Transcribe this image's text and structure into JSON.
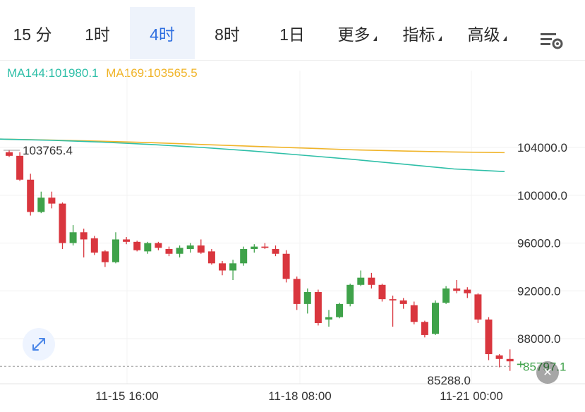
{
  "tabs": [
    {
      "label": "15 分",
      "active": false
    },
    {
      "label": "1时",
      "active": false
    },
    {
      "label": "4时",
      "active": true
    },
    {
      "label": "8时",
      "active": false
    },
    {
      "label": "1日",
      "active": false
    },
    {
      "label": "更多",
      "active": false,
      "dropdown": true
    },
    {
      "label": "指标",
      "active": false,
      "dropdown": true
    },
    {
      "label": "高级",
      "active": false,
      "dropdown": true
    }
  ],
  "ma": {
    "ma144_label": "MA144:101980.1",
    "ma169_label": "MA169:103565.5"
  },
  "colors": {
    "up": "#3fa24a",
    "down": "#d9363e",
    "ma144": "#2fbfa8",
    "ma169": "#f0b429",
    "active_tab": "#2f6fe0",
    "last_price": "#3fa24a"
  },
  "icons": {
    "settings": "chart-settings-icon",
    "expand": "expand-icon",
    "close": "close-icon"
  },
  "chart_data": {
    "type": "candlestick",
    "y_axis_labels": [
      "104000.0",
      "100000.0",
      "96000.0",
      "92000.0",
      "88000.0"
    ],
    "y_axis_values": [
      104000,
      100000,
      96000,
      92000,
      88000
    ],
    "x_axis_labels": [
      "11-15 16:00",
      "11-18 08:00",
      "11-21 00:00"
    ],
    "max_marker": "103765.4",
    "min_marker": "85288.0",
    "last_price": "85797.1",
    "ma144": [
      104700,
      104600,
      104450,
      104250,
      104000,
      103700,
      103350,
      103000,
      102600,
      102200,
      101980
    ],
    "ma169": [
      104700,
      104620,
      104520,
      104400,
      104250,
      104100,
      103950,
      103800,
      103700,
      103620,
      103565
    ],
    "candles": [
      [
        103600,
        103300,
        103800,
        103200
      ],
      [
        103300,
        101300,
        103600,
        101200
      ],
      [
        101300,
        98600,
        101800,
        98300
      ],
      [
        98600,
        99800,
        100300,
        98500
      ],
      [
        99800,
        99300,
        100300,
        98900
      ],
      [
        99300,
        96000,
        99400,
        95500
      ],
      [
        96000,
        96900,
        97500,
        95800
      ],
      [
        96900,
        96300,
        97200,
        94800
      ],
      [
        96400,
        95200,
        96600,
        95000
      ],
      [
        95300,
        94400,
        95400,
        94000
      ],
      [
        94400,
        96300,
        96900,
        94300
      ],
      [
        96300,
        96100,
        96500,
        95900
      ],
      [
        96100,
        95400,
        96200,
        95300
      ],
      [
        95300,
        96000,
        96100,
        95100
      ],
      [
        96000,
        95600,
        96100,
        95400
      ],
      [
        95500,
        95100,
        95700,
        94900
      ],
      [
        95100,
        95600,
        95800,
        94800
      ],
      [
        95500,
        95800,
        96000,
        95200
      ],
      [
        95800,
        95200,
        96300,
        95100
      ],
      [
        95300,
        94300,
        95500,
        94200
      ],
      [
        94300,
        93700,
        94500,
        93300
      ],
      [
        93700,
        94300,
        94600,
        92900
      ],
      [
        94300,
        95500,
        95700,
        94100
      ],
      [
        95500,
        95700,
        95900,
        95200
      ],
      [
        95700,
        95600,
        96000,
        95500
      ],
      [
        95500,
        95100,
        95800,
        94900
      ],
      [
        95100,
        93000,
        95400,
        92700
      ],
      [
        93000,
        90900,
        93200,
        90400
      ],
      [
        90900,
        91900,
        92200,
        90100
      ],
      [
        91900,
        89300,
        92100,
        89100
      ],
      [
        89600,
        89800,
        90400,
        89000
      ],
      [
        89800,
        90900,
        91000,
        89700
      ],
      [
        90900,
        92500,
        92600,
        90700
      ],
      [
        92500,
        93100,
        93700,
        92400
      ],
      [
        93100,
        92500,
        93500,
        92200
      ],
      [
        92500,
        91300,
        92600,
        91100
      ],
      [
        91300,
        91200,
        91600,
        89000
      ],
      [
        91200,
        90900,
        91400,
        90500
      ],
      [
        90800,
        89400,
        91100,
        89200
      ],
      [
        89400,
        88300,
        89500,
        88100
      ],
      [
        88400,
        91000,
        91200,
        88300
      ],
      [
        91000,
        92200,
        92400,
        90900
      ],
      [
        92200,
        92000,
        92900,
        91800
      ],
      [
        92100,
        91800,
        92300,
        91400
      ],
      [
        91700,
        89600,
        91800,
        89300
      ],
      [
        89600,
        86700,
        89800,
        86200
      ],
      [
        86600,
        86300,
        86700,
        85600
      ],
      [
        86300,
        86100,
        87100,
        85300
      ],
      [
        85800,
        85900,
        86100,
        85600
      ]
    ]
  }
}
